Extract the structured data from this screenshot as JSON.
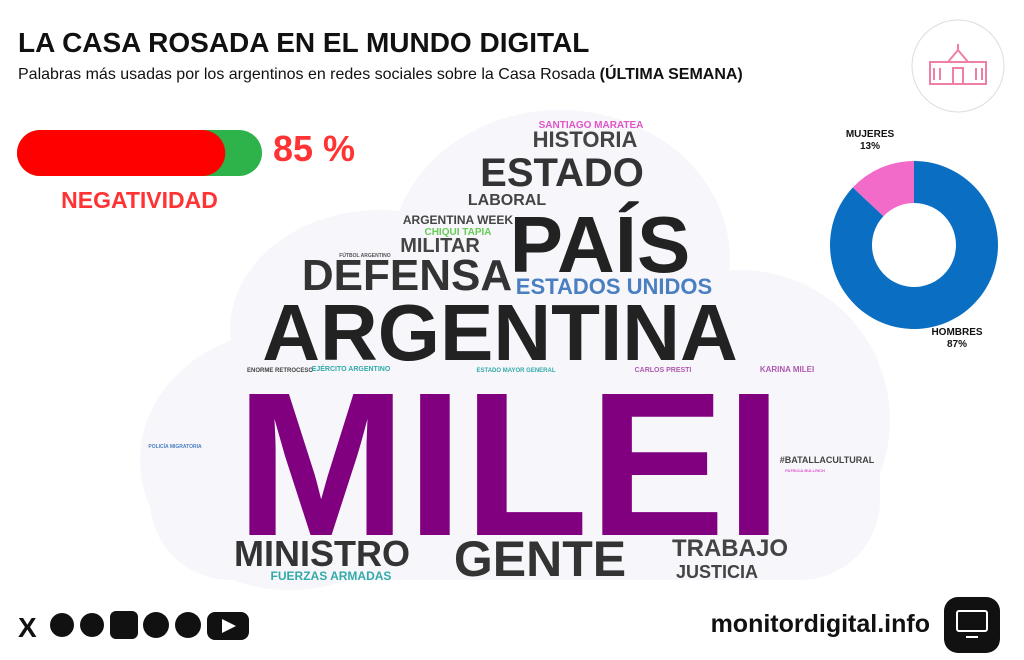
{
  "header": {
    "title": "LA CASA ROSADA EN EL MUNDO DIGITAL",
    "subtitle": "Palabras más usadas por los argentinos en redes sociales sobre la Casa Rosada",
    "subtitle_emphasis": "(ÚLTIMA SEMANA)"
  },
  "negativity": {
    "label": "NEGATIVIDAD",
    "value": 85,
    "value_label": "85 %",
    "xlim": [
      0,
      100
    ]
  },
  "word_cloud": {
    "words": [
      "SANTIAGO MARATEA",
      "HISTORIA",
      "ESTADO",
      "LABORAL",
      "ARGENTINA WEEK",
      "CHIQUI TAPIA",
      "PAÍS",
      "FÚTBOL ARGENTINO",
      "MILITAR",
      "DEFENSA",
      "ESTADOS UNIDOS",
      "ARGENTINA",
      "ENORME RETROCESO",
      "EJÉRCITO ARGENTINO",
      "ESTADO MAYOR GENERAL",
      "CARLOS PRESTI",
      "KARINA MILEI",
      "MILEI",
      "POLICÍA MIGRATORIA",
      "#BATALLACULTURAL",
      "PATRICIA BULLRICH",
      "MINISTRO",
      "GENTE",
      "TRABAJO",
      "FUERZAS ARMADAS",
      "JUSTICIA"
    ]
  },
  "chart_data": {
    "type": "pie",
    "categories": [
      "MUJERES",
      "HOMBRES"
    ],
    "values": [
      13,
      87
    ],
    "value_labels": [
      "13%",
      "87%"
    ],
    "colors": [
      "#f26bc8",
      "#0a6fc2"
    ]
  },
  "footer": {
    "site": "monitordigital.info"
  }
}
